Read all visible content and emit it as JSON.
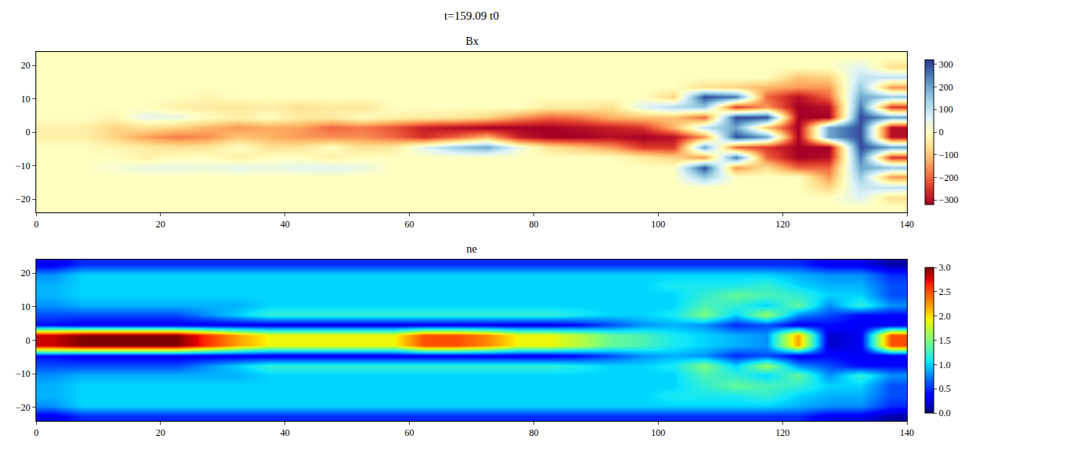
{
  "title": "t=159.09 t0",
  "chart_data": [
    {
      "type": "heatmap",
      "title": "Bx",
      "x": [
        2.5,
        7.5,
        12.5,
        17.5,
        22.5,
        27.5,
        32.5,
        37.5,
        42.5,
        47.5,
        52.5,
        57.5,
        62.5,
        67.5,
        72.5,
        77.5,
        82.5,
        87.5,
        92.5,
        97.5,
        102.5,
        107.5,
        112.5,
        117.5,
        122.5,
        127.5,
        132.5,
        137.5
      ],
      "y": [
        -22.5,
        -19.5,
        -16.5,
        -13.5,
        -10.5,
        -7.5,
        -4.5,
        -1.5,
        1.5,
        4.5,
        7.5,
        10.5,
        13.5,
        16.5,
        19.5,
        22.5
      ],
      "z": [
        [
          0,
          0,
          0,
          0,
          0,
          0,
          0,
          0,
          0,
          0,
          0,
          0,
          0,
          0,
          0,
          0,
          0,
          0,
          0,
          0,
          0,
          0,
          0,
          0,
          0,
          0,
          0,
          0
        ],
        [
          0,
          0,
          0,
          0,
          0,
          0,
          0,
          0,
          0,
          0,
          0,
          0,
          0,
          0,
          0,
          0,
          0,
          0,
          0,
          0,
          0,
          0,
          0,
          0,
          0,
          0,
          60,
          -60
        ],
        [
          0,
          0,
          0,
          0,
          0,
          0,
          0,
          0,
          0,
          0,
          0,
          0,
          0,
          0,
          0,
          0,
          0,
          0,
          0,
          0,
          0,
          0,
          0,
          0,
          0,
          -80,
          100,
          100
        ],
        [
          0,
          0,
          0,
          0,
          0,
          0,
          0,
          0,
          0,
          0,
          0,
          0,
          0,
          0,
          0,
          0,
          0,
          0,
          0,
          0,
          0,
          150,
          0,
          0,
          0,
          -150,
          150,
          -150
        ],
        [
          0,
          0,
          20,
          40,
          40,
          30,
          50,
          40,
          50,
          60,
          40,
          0,
          0,
          0,
          0,
          0,
          0,
          0,
          0,
          0,
          0,
          300,
          -150,
          -60,
          -200,
          -200,
          200,
          150
        ],
        [
          0,
          0,
          0,
          -30,
          0,
          0,
          -30,
          0,
          0,
          -30,
          0,
          0,
          0,
          0,
          0,
          0,
          0,
          0,
          0,
          -40,
          -80,
          -150,
          250,
          -200,
          -320,
          -300,
          250,
          -250
        ],
        [
          0,
          0,
          -20,
          -40,
          -60,
          -50,
          0,
          -60,
          -50,
          0,
          -60,
          -40,
          60,
          150,
          200,
          40,
          -60,
          -100,
          -150,
          -250,
          -250,
          200,
          -200,
          -250,
          -320,
          -320,
          300,
          200
        ],
        [
          -30,
          -30,
          -80,
          -140,
          -180,
          -160,
          -100,
          -120,
          -150,
          -160,
          -160,
          -200,
          -260,
          -200,
          -120,
          -280,
          -320,
          -320,
          -300,
          -320,
          -300,
          -150,
          300,
          200,
          -320,
          200,
          300,
          -300
        ],
        [
          -30,
          -30,
          -80,
          -60,
          -80,
          -120,
          -150,
          -130,
          -140,
          -200,
          -180,
          -220,
          -280,
          -300,
          -320,
          -320,
          -320,
          -300,
          -280,
          -250,
          -120,
          100,
          200,
          -100,
          -320,
          200,
          300,
          -300
        ],
        [
          0,
          0,
          -20,
          50,
          40,
          0,
          -30,
          0,
          -40,
          -40,
          0,
          -30,
          -40,
          -50,
          -80,
          -150,
          -200,
          -180,
          -120,
          -100,
          -100,
          -200,
          300,
          300,
          -320,
          -320,
          300,
          200
        ],
        [
          0,
          0,
          0,
          0,
          -30,
          -40,
          -50,
          -30,
          -60,
          -40,
          -50,
          0,
          0,
          0,
          0,
          0,
          -40,
          -40,
          -60,
          60,
          120,
          150,
          -250,
          -150,
          -320,
          -300,
          250,
          -250
        ],
        [
          0,
          0,
          0,
          0,
          0,
          -20,
          0,
          0,
          0,
          0,
          0,
          0,
          0,
          0,
          0,
          0,
          0,
          0,
          0,
          0,
          -80,
          300,
          250,
          -200,
          -300,
          -200,
          200,
          150
        ],
        [
          0,
          0,
          0,
          0,
          0,
          0,
          0,
          0,
          0,
          0,
          0,
          0,
          0,
          0,
          0,
          0,
          0,
          0,
          0,
          0,
          0,
          -60,
          -80,
          -120,
          -150,
          -150,
          150,
          -150
        ],
        [
          0,
          0,
          0,
          0,
          0,
          0,
          0,
          0,
          0,
          0,
          0,
          0,
          0,
          0,
          0,
          0,
          0,
          0,
          0,
          0,
          0,
          0,
          0,
          0,
          -100,
          -80,
          100,
          100
        ],
        [
          0,
          0,
          0,
          0,
          0,
          0,
          0,
          0,
          0,
          0,
          0,
          0,
          0,
          0,
          0,
          0,
          0,
          0,
          0,
          0,
          0,
          0,
          0,
          0,
          0,
          0,
          60,
          -60
        ],
        [
          0,
          0,
          0,
          0,
          0,
          0,
          0,
          0,
          0,
          0,
          0,
          0,
          0,
          0,
          0,
          0,
          0,
          0,
          0,
          0,
          0,
          0,
          0,
          0,
          0,
          0,
          0,
          0
        ]
      ],
      "xlim": [
        0,
        140
      ],
      "ylim": [
        -24,
        24
      ],
      "xticks": [
        0,
        20,
        40,
        60,
        80,
        100,
        120,
        140
      ],
      "yticks": [
        {
          "value": -20,
          "label": "−20"
        },
        {
          "value": -10,
          "label": "−10"
        },
        0,
        10,
        20
      ],
      "zlim": [
        -320,
        320
      ],
      "zticks": [
        {
          "value": -300,
          "label": "−300"
        },
        {
          "value": -200,
          "label": "−200"
        },
        {
          "value": -100,
          "label": "−100"
        },
        0,
        100,
        200,
        300
      ]
    },
    {
      "type": "heatmap",
      "title": "ne",
      "x": [
        2.5,
        7.5,
        12.5,
        17.5,
        22.5,
        27.5,
        32.5,
        37.5,
        42.5,
        47.5,
        52.5,
        57.5,
        62.5,
        67.5,
        72.5,
        77.5,
        82.5,
        87.5,
        92.5,
        97.5,
        102.5,
        107.5,
        112.5,
        117.5,
        122.5,
        127.5,
        132.5,
        137.5
      ],
      "y": [
        -22.5,
        -19.5,
        -16.5,
        -13.5,
        -10.5,
        -7.5,
        -4.5,
        -1.5,
        1.5,
        4.5,
        7.5,
        10.5,
        13.5,
        16.5,
        19.5,
        22.5
      ],
      "z": [
        [
          0.3,
          0.5,
          0.5,
          0.5,
          0.5,
          0.5,
          0.5,
          0.5,
          0.5,
          0.5,
          0.5,
          0.5,
          0.5,
          0.5,
          0.5,
          0.5,
          0.5,
          0.5,
          0.5,
          0.5,
          0.5,
          0.5,
          0.5,
          0.5,
          0.5,
          0.3,
          0.3,
          0.1
        ],
        [
          0.8,
          1.0,
          1.0,
          1.0,
          1.0,
          1.0,
          1.0,
          1.0,
          1.0,
          1.0,
          1.0,
          1.0,
          1.0,
          1.0,
          1.0,
          1.0,
          1.0,
          1.0,
          1.0,
          1.0,
          1.0,
          1.0,
          1.0,
          1.0,
          0.9,
          0.8,
          0.8,
          0.5
        ],
        [
          0.9,
          1.0,
          1.0,
          1.0,
          1.0,
          1.0,
          1.0,
          1.0,
          1.0,
          1.0,
          1.0,
          1.0,
          1.0,
          1.0,
          1.0,
          1.0,
          1.0,
          1.0,
          1.0,
          1.0,
          1.1,
          1.1,
          1.1,
          1.2,
          1.0,
          0.9,
          0.9,
          0.6
        ],
        [
          0.9,
          1.0,
          1.0,
          1.0,
          1.0,
          1.0,
          1.0,
          1.0,
          1.0,
          1.0,
          1.0,
          1.0,
          1.0,
          1.0,
          1.0,
          1.0,
          1.0,
          1.0,
          1.0,
          1.0,
          1.0,
          1.2,
          1.4,
          1.3,
          1.2,
          1.0,
          1.0,
          0.6
        ],
        [
          0.8,
          0.9,
          0.9,
          0.9,
          0.9,
          0.9,
          0.9,
          1.0,
          1.0,
          1.0,
          1.0,
          1.0,
          1.0,
          1.0,
          1.0,
          1.0,
          1.0,
          1.0,
          1.0,
          1.0,
          1.0,
          1.3,
          1.2,
          1.0,
          1.4,
          0.8,
          1.2,
          0.8
        ],
        [
          0.6,
          0.6,
          0.6,
          0.6,
          0.6,
          0.8,
          1.0,
          1.2,
          1.2,
          1.2,
          1.2,
          1.2,
          1.2,
          1.2,
          1.2,
          1.2,
          1.2,
          1.1,
          1.0,
          1.0,
          1.1,
          1.5,
          1.0,
          1.6,
          0.8,
          0.6,
          0.4,
          0.4
        ],
        [
          0.4,
          0.3,
          0.3,
          0.3,
          0.3,
          0.3,
          0.3,
          0.3,
          0.3,
          0.3,
          0.3,
          0.3,
          0.3,
          0.3,
          0.3,
          0.3,
          0.3,
          0.4,
          0.6,
          0.8,
          0.9,
          0.8,
          0.5,
          0.6,
          0.3,
          0.4,
          0.3,
          0.3
        ],
        [
          2.8,
          3.0,
          3.0,
          3.0,
          3.0,
          2.6,
          2.2,
          1.9,
          1.9,
          1.9,
          1.9,
          1.9,
          2.5,
          2.5,
          2.3,
          1.9,
          1.9,
          1.7,
          1.4,
          1.3,
          1.1,
          1.0,
          0.9,
          0.8,
          2.2,
          0.2,
          0.3,
          2.5
        ],
        [
          2.8,
          3.0,
          3.0,
          3.0,
          3.0,
          2.6,
          2.2,
          1.9,
          1.9,
          1.9,
          1.9,
          1.9,
          2.5,
          2.5,
          2.3,
          1.9,
          1.9,
          1.7,
          1.4,
          1.3,
          1.1,
          1.0,
          0.9,
          0.8,
          2.2,
          0.2,
          0.3,
          2.5
        ],
        [
          0.4,
          0.3,
          0.3,
          0.3,
          0.3,
          0.3,
          0.3,
          0.3,
          0.3,
          0.3,
          0.3,
          0.3,
          0.3,
          0.3,
          0.3,
          0.3,
          0.3,
          0.4,
          0.6,
          0.8,
          0.9,
          0.8,
          0.5,
          0.6,
          0.3,
          0.4,
          0.3,
          0.3
        ],
        [
          0.6,
          0.6,
          0.6,
          0.6,
          0.6,
          0.8,
          1.0,
          1.2,
          1.2,
          1.2,
          1.2,
          1.2,
          1.2,
          1.2,
          1.2,
          1.2,
          1.2,
          1.1,
          1.0,
          1.0,
          1.1,
          1.5,
          1.0,
          1.6,
          0.8,
          0.6,
          0.4,
          0.4
        ],
        [
          0.8,
          0.9,
          0.9,
          0.9,
          0.9,
          0.9,
          0.9,
          1.0,
          1.0,
          1.0,
          1.0,
          1.0,
          1.0,
          1.0,
          1.0,
          1.0,
          1.0,
          1.0,
          1.0,
          1.0,
          1.0,
          1.3,
          1.2,
          1.0,
          1.4,
          0.8,
          1.2,
          0.8
        ],
        [
          0.9,
          1.0,
          1.0,
          1.0,
          1.0,
          1.0,
          1.0,
          1.0,
          1.0,
          1.0,
          1.0,
          1.0,
          1.0,
          1.0,
          1.0,
          1.0,
          1.0,
          1.0,
          1.0,
          1.0,
          1.0,
          1.2,
          1.4,
          1.3,
          1.2,
          1.0,
          1.0,
          0.6
        ],
        [
          0.9,
          1.0,
          1.0,
          1.0,
          1.0,
          1.0,
          1.0,
          1.0,
          1.0,
          1.0,
          1.0,
          1.0,
          1.0,
          1.0,
          1.0,
          1.0,
          1.0,
          1.0,
          1.0,
          1.0,
          1.1,
          1.1,
          1.1,
          1.2,
          1.0,
          0.9,
          0.9,
          0.6
        ],
        [
          0.8,
          1.0,
          1.0,
          1.0,
          1.0,
          1.0,
          1.0,
          1.0,
          1.0,
          1.0,
          1.0,
          1.0,
          1.0,
          1.0,
          1.0,
          1.0,
          1.0,
          1.0,
          1.0,
          1.0,
          1.0,
          1.0,
          1.0,
          1.0,
          0.9,
          0.8,
          0.8,
          0.5
        ],
        [
          0.3,
          0.5,
          0.5,
          0.5,
          0.5,
          0.5,
          0.5,
          0.5,
          0.5,
          0.5,
          0.5,
          0.5,
          0.5,
          0.5,
          0.5,
          0.5,
          0.5,
          0.5,
          0.5,
          0.5,
          0.5,
          0.5,
          0.5,
          0.5,
          0.5,
          0.3,
          0.3,
          0.1
        ]
      ],
      "xlim": [
        0,
        140
      ],
      "ylim": [
        -24,
        24
      ],
      "xticks": [
        0,
        20,
        40,
        60,
        80,
        100,
        120,
        140
      ],
      "yticks": [
        {
          "value": -20,
          "label": "−20"
        },
        {
          "value": -10,
          "label": "−10"
        },
        0,
        10,
        20
      ],
      "zlim": [
        0,
        3
      ],
      "zticks": [
        {
          "value": 0,
          "label": "0.0"
        },
        {
          "value": 0.5,
          "label": "0.5"
        },
        {
          "value": 1,
          "label": "1.0"
        },
        {
          "value": 1.5,
          "label": "1.5"
        },
        {
          "value": 2,
          "label": "2.0"
        },
        {
          "value": 2.5,
          "label": "2.5"
        },
        {
          "value": 3,
          "label": "3.0"
        }
      ]
    }
  ]
}
